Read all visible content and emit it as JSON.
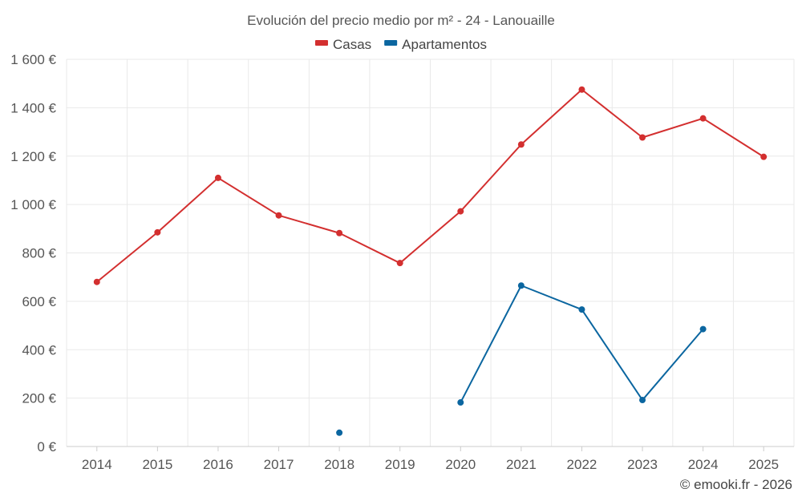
{
  "chart_data": {
    "type": "line",
    "title": "Evolución del precio medio por m² - 24 - Lanouaille",
    "categories": [
      "2014",
      "2015",
      "2016",
      "2017",
      "2018",
      "2019",
      "2020",
      "2021",
      "2022",
      "2023",
      "2024",
      "2025"
    ],
    "series": [
      {
        "name": "Casas",
        "color": "#d32f2f",
        "values": [
          680,
          885,
          1110,
          955,
          882,
          758,
          972,
          1248,
          1475,
          1277,
          1356,
          1197
        ]
      },
      {
        "name": "Apartamentos",
        "color": "#0b66a0",
        "values": [
          null,
          null,
          null,
          null,
          57,
          null,
          182,
          665,
          566,
          192,
          485,
          null
        ]
      }
    ],
    "yticks": [
      "0 €",
      "200 €",
      "400 €",
      "600 €",
      "800 €",
      "1 000 €",
      "1 200 €",
      "1 400 €",
      "1 600 €"
    ],
    "ylim": [
      0,
      1600
    ],
    "xlabel": "",
    "ylabel": "",
    "legend_position": "top-center",
    "grid": true
  },
  "credit": "© emooki.fr - 2026"
}
